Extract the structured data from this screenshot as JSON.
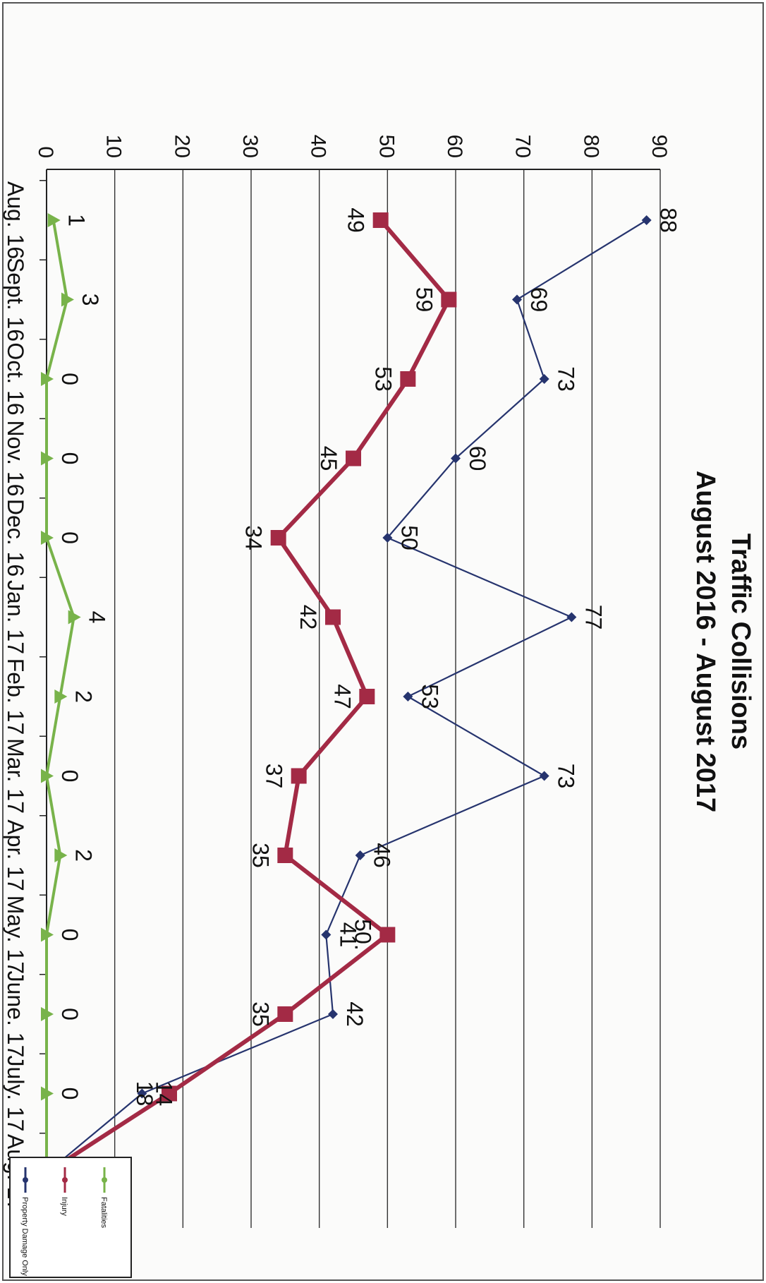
{
  "chart_data": {
    "type": "line",
    "title": "Traffic Collisions",
    "subtitle": "August 2016 - August 2017",
    "xlabel": "",
    "ylabel": "",
    "categories": [
      "Aug. 16",
      "Sept. 16",
      "Oct. 16",
      "Nov. 16",
      "Dec. 16",
      "Jan. 17",
      "Feb. 17",
      "Mar. 17",
      "Apr. 17",
      "May. 17",
      "June. 17",
      "July. 17",
      "Aug. 17"
    ],
    "ylim": [
      0,
      90
    ],
    "yticks": [
      "0",
      "10",
      "20",
      "30",
      "40",
      "50",
      "60",
      "70",
      "80",
      "90"
    ],
    "grid": "horizontal",
    "legend_position": "top-left",
    "orientation": "rotated 90 degrees clockwise",
    "series": [
      {
        "name": "Property Damage Only",
        "color": "#26346e",
        "marker": "diamond",
        "values": [
          88,
          69,
          73,
          60,
          50,
          77,
          53,
          73,
          46,
          41,
          42,
          14,
          0
        ],
        "labels": [
          "88",
          "69",
          "73",
          "60",
          "50",
          "77",
          "53",
          "73",
          "46",
          "41",
          "42",
          "14",
          "0"
        ]
      },
      {
        "name": "Injury",
        "color": "#a32a45",
        "marker": "square",
        "values": [
          49,
          59,
          53,
          45,
          34,
          42,
          47,
          37,
          35,
          50,
          35,
          18,
          0
        ],
        "labels": [
          "49",
          "59",
          "53",
          "45",
          "34",
          "42",
          "47",
          "37",
          "35",
          "50.",
          "35",
          "18",
          "0"
        ]
      },
      {
        "name": "Fatalities",
        "color": "#78b34a",
        "marker": "triangle",
        "values": [
          1,
          3,
          0,
          0,
          0,
          4,
          2,
          0,
          2,
          0,
          0,
          0,
          0
        ],
        "labels": [
          "1",
          "3",
          "0",
          "0",
          "0",
          "4",
          "2",
          "0",
          "2",
          "0",
          "0",
          "0",
          "0"
        ]
      }
    ]
  }
}
